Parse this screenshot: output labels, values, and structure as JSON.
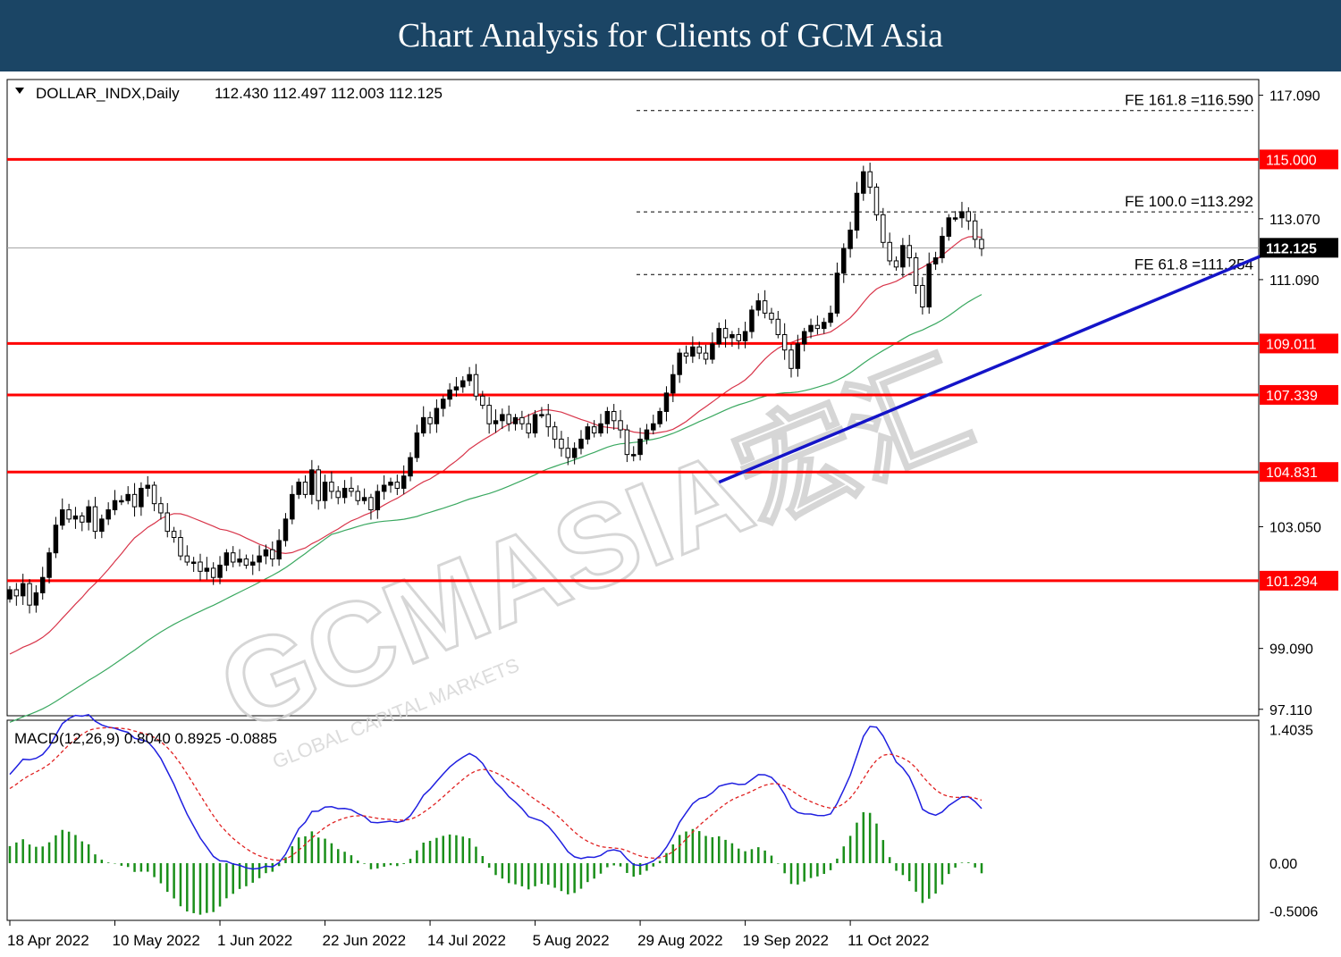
{
  "header": {
    "title": "Chart Analysis for Clients of GCM Asia"
  },
  "watermark": {
    "brand": "GCMASIA宏汇",
    "tagline": "GLOBAL CAPITAL MARKETS"
  },
  "chart_data": {
    "type": "candlestick",
    "symbol_info": "DOLLAR_INDX,Daily",
    "ohlc_text": "112.430 112.497 112.003 112.125",
    "current_price": "112.125",
    "ylim": [
      96.9,
      117.6
    ],
    "yticks": [
      "117.090",
      "113.070",
      "111.090",
      "103.050",
      "99.090",
      "97.110"
    ],
    "xticks": [
      "18 Apr 2022",
      "10 May 2022",
      "1 Jun 2022",
      "22 Jun 2022",
      "14 Jul 2022",
      "5 Aug 2022",
      "29 Aug 2022",
      "19 Sep 2022",
      "11 Oct 2022"
    ],
    "levels": [
      {
        "value": 115.0,
        "label": "115.000"
      },
      {
        "value": 109.011,
        "label": "109.011"
      },
      {
        "value": 107.339,
        "label": "107.339"
      },
      {
        "value": 104.831,
        "label": "104.831"
      },
      {
        "value": 101.294,
        "label": "101.294"
      }
    ],
    "fibo": [
      {
        "value": 116.59,
        "label": "FE 161.8 =116.590"
      },
      {
        "value": 113.292,
        "label": "FE 100.0 =113.292"
      },
      {
        "value": 111.254,
        "label": "FE 61.8 =111.254"
      }
    ],
    "trendline": {
      "from": {
        "bar": 108,
        "value": 104.5
      },
      "to": {
        "bar": 191,
        "value": 111.9
      }
    },
    "closes": [
      101.0,
      100.8,
      101.2,
      100.5,
      100.9,
      101.4,
      102.2,
      103.1,
      103.6,
      103.3,
      103.4,
      103.2,
      103.7,
      102.9,
      103.3,
      103.6,
      103.9,
      103.9,
      104.1,
      103.7,
      104.3,
      104.4,
      103.8,
      103.5,
      102.9,
      102.7,
      102.1,
      101.9,
      101.9,
      101.6,
      101.7,
      101.4,
      101.8,
      102.2,
      101.9,
      102.0,
      101.8,
      101.9,
      102.1,
      102.3,
      102.0,
      102.6,
      103.3,
      104.1,
      104.5,
      104.1,
      104.9,
      103.9,
      104.5,
      104.2,
      104.0,
      104.3,
      104.2,
      103.9,
      104.0,
      103.6,
      104.2,
      104.4,
      104.5,
      104.3,
      104.7,
      105.3,
      106.1,
      106.6,
      106.4,
      106.9,
      107.2,
      107.5,
      107.6,
      107.8,
      108.0,
      107.3,
      107.0,
      106.4,
      106.5,
      106.7,
      106.4,
      106.6,
      106.4,
      106.1,
      106.7,
      106.7,
      106.3,
      105.9,
      105.6,
      105.3,
      105.6,
      105.9,
      106.3,
      106.1,
      106.4,
      106.8,
      106.5,
      106.2,
      105.4,
      105.4,
      105.9,
      106.2,
      106.4,
      106.8,
      107.4,
      108.0,
      108.7,
      108.6,
      108.9,
      108.7,
      108.5,
      109.0,
      109.5,
      109.2,
      109.3,
      109.1,
      109.4,
      110.1,
      110.4,
      110.0,
      109.8,
      109.3,
      108.8,
      108.2,
      109.0,
      109.4,
      109.6,
      109.5,
      109.7,
      110.0,
      111.3,
      112.1,
      112.7,
      113.9,
      114.6,
      114.1,
      113.2,
      112.3,
      111.7,
      111.5,
      112.2,
      111.8,
      110.9,
      110.2,
      111.6,
      111.8,
      112.5,
      113.1,
      113.1,
      113.3,
      113.0,
      112.4,
      112.1
    ],
    "macd": {
      "label": "MACD(12,26,9) 0.8040 0.8925 -0.0885",
      "ylim": [
        -0.6,
        1.5
      ],
      "yticks": [
        "1.4035",
        "0.00",
        "-0.5006"
      ]
    }
  }
}
